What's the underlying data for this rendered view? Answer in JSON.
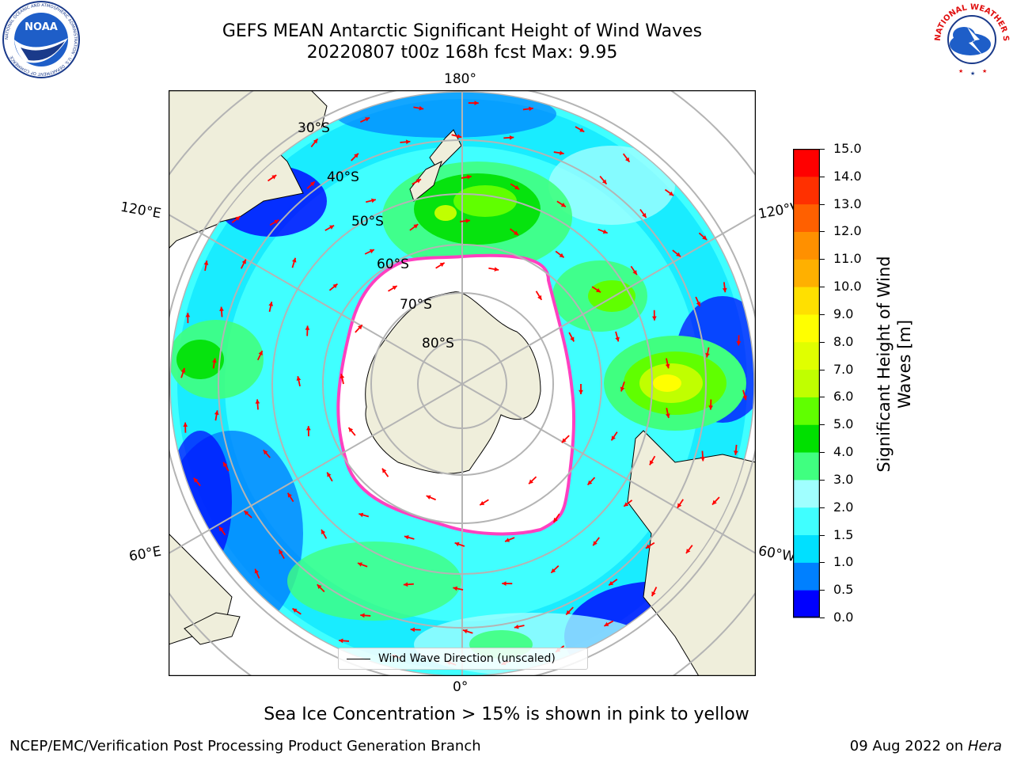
{
  "header": {
    "title_line1": "GEFS MEAN Antarctic Significant Height of Wind Waves",
    "title_line2": "20220807 t00z 168h fcst   Max: 9.95"
  },
  "logos": {
    "left": {
      "text": "NOAA",
      "ring_text": "NATIONAL OCEANIC AND ATMOSPHERIC ADMINISTRATION · U.S. DEPARTMENT OF COMMERCE"
    },
    "right": {
      "ring_text": "NATIONAL WEATHER SERVICE"
    }
  },
  "map": {
    "longitude_labels": {
      "top": "180°",
      "bottom": "0°",
      "left_upper": "120°E",
      "left_lower": "60°E",
      "right_upper": "120°W",
      "right_lower": "60°W"
    },
    "latitude_labels": [
      "30°S",
      "40°S",
      "50°S",
      "60°S",
      "70°S",
      "80°S"
    ],
    "legend_label": "Wind Wave Direction (unscaled)"
  },
  "colorbar": {
    "title": "Significant Height of Wind Waves [m]",
    "ticks": [
      "15.0",
      "14.0",
      "13.0",
      "12.0",
      "11.0",
      "10.0",
      "9.0",
      "8.0",
      "7.0",
      "6.0",
      "5.0",
      "4.0",
      "3.0",
      "2.0",
      "1.5",
      "1.0",
      "0.5",
      "0.0"
    ],
    "colors": [
      "#0000ff",
      "#0080ff",
      "#00e0ff",
      "#40ffff",
      "#a0ffff",
      "#40ff80",
      "#00e000",
      "#60ff00",
      "#c0ff00",
      "#e0ff00",
      "#ffff00",
      "#ffe000",
      "#ffb000",
      "#ff9000",
      "#ff6000",
      "#ff3000",
      "#ff0000"
    ]
  },
  "notes": {
    "ice": "Sea Ice Concentration > 15% is shown in pink to yellow"
  },
  "footer": {
    "left": "NCEP/EMC/Verification Post Processing Product Generation Branch",
    "date": "09 Aug 2022 on ",
    "machine": "Hera"
  },
  "palette": {
    "land": "#efeedb",
    "ice_edge": "#ff40c0",
    "grid": "#b4b4b4",
    "arrow": "#ff0000"
  }
}
